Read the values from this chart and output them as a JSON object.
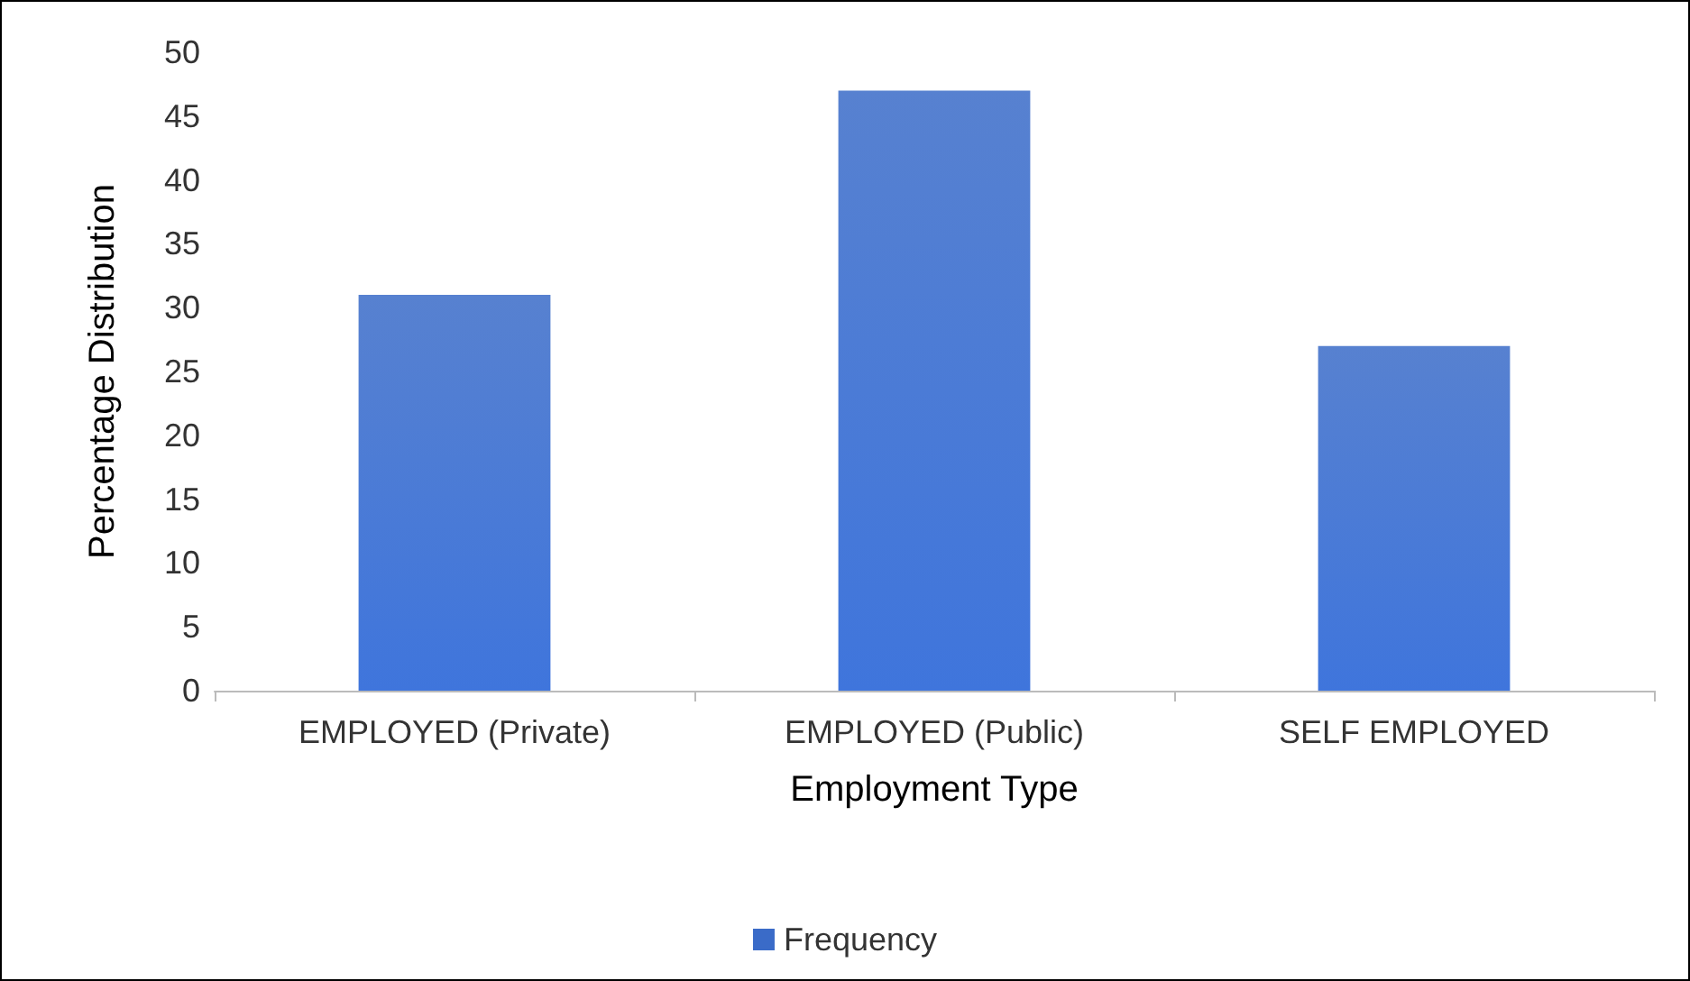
{
  "chart_data": {
    "type": "bar",
    "xlabel": "Employment Type",
    "ylabel": "Percentage Distribution",
    "categories": [
      "EMPLOYED (Private)",
      "EMPLOYED (Public)",
      "SELF EMPLOYED"
    ],
    "series": [
      {
        "name": "Frequency",
        "color": "#3a6bc8",
        "values": [
          31,
          47,
          27
        ]
      }
    ],
    "ylim": [
      0,
      50
    ],
    "yticks": [
      0,
      5,
      10,
      15,
      20,
      25,
      30,
      35,
      40,
      45,
      50
    ],
    "grid": false,
    "legend": "bottom"
  }
}
